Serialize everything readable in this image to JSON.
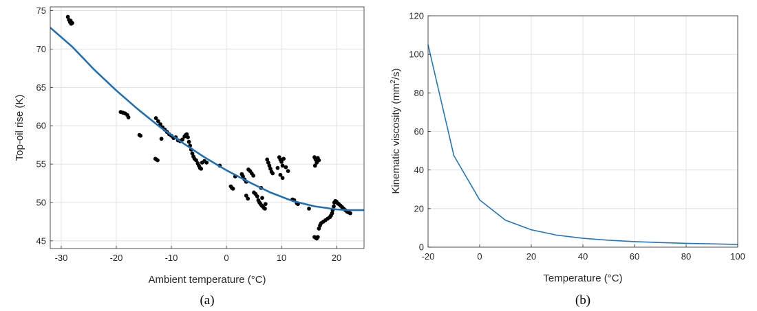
{
  "chart_data": [
    {
      "type": "scatter",
      "caption": "(a)",
      "xlabel": "Ambient temperature (°C)",
      "ylabel": "Top-oil rise (K)",
      "xlim": [
        -32,
        25
      ],
      "ylim": [
        44,
        75.5
      ],
      "xticks": [
        -30,
        -20,
        -10,
        0,
        10,
        20
      ],
      "yticks": [
        45,
        50,
        55,
        60,
        65,
        70,
        75
      ],
      "grid": true,
      "colors": {
        "points": "#000000",
        "fit": "#1f6fb4"
      },
      "series": [
        {
          "kind": "points",
          "points": [
            [
              -28.8,
              74.2
            ],
            [
              -28.6,
              73.8
            ],
            [
              -28.4,
              73.5
            ],
            [
              -28.2,
              73.3
            ],
            [
              -28.0,
              73.4
            ],
            [
              -28.3,
              73.7
            ],
            [
              -19.2,
              61.8
            ],
            [
              -18.8,
              61.7
            ],
            [
              -18.4,
              61.6
            ],
            [
              -18.0,
              61.4
            ],
            [
              -17.8,
              61.1
            ],
            [
              -15.8,
              58.8
            ],
            [
              -15.6,
              58.7
            ],
            [
              -12.9,
              55.7
            ],
            [
              -12.7,
              55.6
            ],
            [
              -12.5,
              55.5
            ],
            [
              -12.8,
              61.0
            ],
            [
              -12.4,
              60.6
            ],
            [
              -12.0,
              60.2
            ],
            [
              -11.6,
              59.8
            ],
            [
              -11.2,
              59.5
            ],
            [
              -11.8,
              58.3
            ],
            [
              -10.8,
              59.2
            ],
            [
              -10.4,
              58.9
            ],
            [
              -10.0,
              58.7
            ],
            [
              -9.6,
              58.4
            ],
            [
              -9.2,
              58.5
            ],
            [
              -8.8,
              58.1
            ],
            [
              -8.4,
              58.0
            ],
            [
              -8.0,
              58.2
            ],
            [
              -7.6,
              58.6
            ],
            [
              -7.4,
              58.8
            ],
            [
              -7.2,
              58.9
            ],
            [
              -7.0,
              58.5
            ],
            [
              -6.8,
              57.9
            ],
            [
              -6.6,
              57.4
            ],
            [
              -6.4,
              56.9
            ],
            [
              -6.2,
              56.4
            ],
            [
              -6.0,
              56.0
            ],
            [
              -5.8,
              55.7
            ],
            [
              -5.5,
              55.5
            ],
            [
              -5.2,
              55.1
            ],
            [
              -5.0,
              54.8
            ],
            [
              -4.8,
              54.5
            ],
            [
              -4.6,
              54.4
            ],
            [
              -4.4,
              55.2
            ],
            [
              -4.0,
              55.4
            ],
            [
              -3.6,
              55.2
            ],
            [
              -1.2,
              54.8
            ],
            [
              0.8,
              52.1
            ],
            [
              1.0,
              51.9
            ],
            [
              1.2,
              51.8
            ],
            [
              1.6,
              53.4
            ],
            [
              2.8,
              53.7
            ],
            [
              3.0,
              53.4
            ],
            [
              3.3,
              53.0
            ],
            [
              3.6,
              52.7
            ],
            [
              3.6,
              50.9
            ],
            [
              3.9,
              50.5
            ],
            [
              4.0,
              54.3
            ],
            [
              4.3,
              54.1
            ],
            [
              4.6,
              53.8
            ],
            [
              4.9,
              53.5
            ],
            [
              5.0,
              51.3
            ],
            [
              5.3,
              51.1
            ],
            [
              5.6,
              50.8
            ],
            [
              5.8,
              50.3
            ],
            [
              6.0,
              50.0
            ],
            [
              6.2,
              49.8
            ],
            [
              6.4,
              49.6
            ],
            [
              6.6,
              49.5
            ],
            [
              6.8,
              49.3
            ],
            [
              7.0,
              49.2
            ],
            [
              6.5,
              50.6
            ],
            [
              6.3,
              51.9
            ],
            [
              7.1,
              49.8
            ],
            [
              7.4,
              55.6
            ],
            [
              7.6,
              55.2
            ],
            [
              7.8,
              54.8
            ],
            [
              8.0,
              54.4
            ],
            [
              8.2,
              54.0
            ],
            [
              8.4,
              53.8
            ],
            [
              9.3,
              54.5
            ],
            [
              9.6,
              55.9
            ],
            [
              9.8,
              55.6
            ],
            [
              10.0,
              55.3
            ],
            [
              10.2,
              54.8
            ],
            [
              10.4,
              55.7
            ],
            [
              9.8,
              53.6
            ],
            [
              10.2,
              53.2
            ],
            [
              10.8,
              54.6
            ],
            [
              11.2,
              54.1
            ],
            [
              12.0,
              50.4
            ],
            [
              12.3,
              50.3
            ],
            [
              12.8,
              49.9
            ],
            [
              13.0,
              49.8
            ],
            [
              15.0,
              49.2
            ],
            [
              16.0,
              55.9
            ],
            [
              16.2,
              55.6
            ],
            [
              16.4,
              55.2
            ],
            [
              16.6,
              55.8
            ],
            [
              16.8,
              55.5
            ],
            [
              16.1,
              54.8
            ],
            [
              16.0,
              45.5
            ],
            [
              16.2,
              45.4
            ],
            [
              16.4,
              45.3
            ],
            [
              16.6,
              45.5
            ],
            [
              16.8,
              46.6
            ],
            [
              17.0,
              47.0
            ],
            [
              17.2,
              47.3
            ],
            [
              17.6,
              47.5
            ],
            [
              18.0,
              47.7
            ],
            [
              18.4,
              47.9
            ],
            [
              18.8,
              48.1
            ],
            [
              19.0,
              48.3
            ],
            [
              19.2,
              48.6
            ],
            [
              19.3,
              49.0
            ],
            [
              19.5,
              49.5
            ],
            [
              19.6,
              50.0
            ],
            [
              19.8,
              50.2
            ],
            [
              20.0,
              50.1
            ],
            [
              20.2,
              49.9
            ],
            [
              20.4,
              49.8
            ],
            [
              20.7,
              49.6
            ],
            [
              21.0,
              49.4
            ],
            [
              21.3,
              49.2
            ],
            [
              21.6,
              49.0
            ],
            [
              21.9,
              48.8
            ],
            [
              22.2,
              48.7
            ],
            [
              22.5,
              48.6
            ]
          ]
        },
        {
          "kind": "line",
          "x": [
            -32,
            -28,
            -24,
            -20,
            -16,
            -12,
            -8,
            -4,
            0,
            4,
            8,
            12,
            16,
            20,
            22,
            25
          ],
          "y": [
            72.8,
            70.3,
            67.3,
            64.6,
            62.1,
            59.8,
            57.8,
            55.9,
            54.2,
            52.7,
            51.3,
            50.2,
            49.5,
            49.1,
            49.0,
            49.0
          ]
        }
      ]
    },
    {
      "type": "line",
      "caption": "(b)",
      "xlabel": "Temperature (°C)",
      "ylabel_main": "Kinematic viscosity (mm",
      "ylabel_sup": "2",
      "ylabel_tail": "/s)",
      "xlim": [
        -20,
        100
      ],
      "ylim": [
        0,
        120
      ],
      "xticks": [
        -20,
        0,
        20,
        40,
        60,
        80,
        100
      ],
      "yticks": [
        0,
        20,
        40,
        60,
        80,
        100,
        120
      ],
      "grid": true,
      "colors": {
        "line": "#1f77c4"
      },
      "series": [
        {
          "x": [
            -20,
            -10,
            0,
            10,
            20,
            30,
            40,
            50,
            60,
            70,
            80,
            90,
            100
          ],
          "y": [
            105,
            47.5,
            24.5,
            14.0,
            9.0,
            6.2,
            4.6,
            3.6,
            2.9,
            2.4,
            2.0,
            1.7,
            1.4
          ]
        }
      ]
    }
  ]
}
